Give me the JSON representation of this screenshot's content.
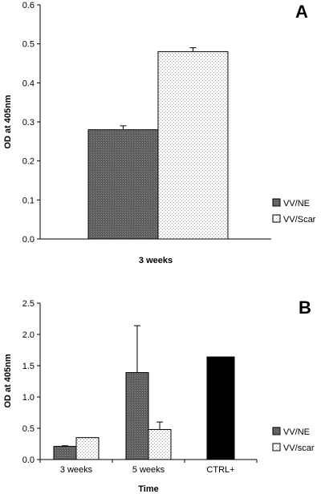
{
  "chart_data": [
    {
      "type": "bar",
      "panel_label": "A",
      "categories": [
        "3 weeks"
      ],
      "xlabel": "3 weeks",
      "ylabel": "OD at 405nm",
      "ylim": [
        0,
        0.6
      ],
      "yticks": [
        "0.0",
        "0.1",
        "0.2",
        "0.3",
        "0.4",
        "0.5",
        "0.6"
      ],
      "grid": false,
      "legend_position": "right",
      "series": [
        {
          "name": "VV/NE",
          "values": [
            0.28
          ],
          "errors": [
            0.01
          ],
          "color": "#6e6e6e",
          "pattern": "dark"
        },
        {
          "name": "VV/Scar",
          "values": [
            0.48
          ],
          "errors": [
            0.01
          ],
          "color": "#ffffff",
          "pattern": "light"
        }
      ]
    },
    {
      "type": "bar",
      "panel_label": "B",
      "categories": [
        "3 weeks",
        "5 weeks",
        "CTRL+"
      ],
      "xlabel": "Time",
      "ylabel": "OD at 405nm",
      "ylim": [
        0,
        2.5
      ],
      "yticks": [
        "0.0",
        "0.5",
        "1.0",
        "1.5",
        "2.0",
        "2.5"
      ],
      "grid": false,
      "legend_position": "right",
      "series": [
        {
          "name": "VV/NE",
          "values": [
            0.21,
            1.39,
            null
          ],
          "errors": [
            0.01,
            0.75,
            null
          ],
          "color": "#6e6e6e",
          "pattern": "dark"
        },
        {
          "name": "VV/scar",
          "values": [
            0.35,
            0.48,
            null
          ],
          "errors": [
            0,
            0.12,
            null
          ],
          "color": "#ffffff",
          "pattern": "light"
        }
      ],
      "control": {
        "category": "CTRL+",
        "value": 1.64,
        "color": "#000000"
      }
    }
  ]
}
